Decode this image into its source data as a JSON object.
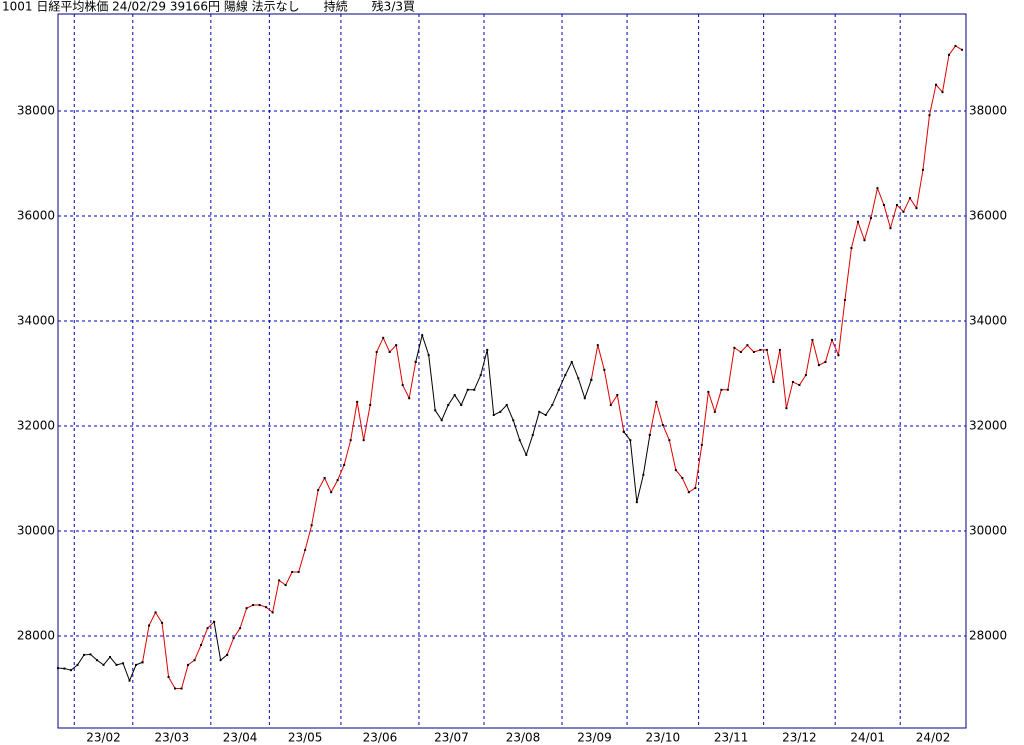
{
  "chart_data": {
    "type": "line",
    "title": "1001 日経平均株価 24/02/29 39166円 陽線 法示なし　　持続　　残3/3買",
    "categories": [
      null,
      null,
      null,
      "23/02",
      null,
      null,
      null,
      null,
      null,
      null,
      null,
      null,
      "23/03",
      null,
      null,
      null,
      null,
      null,
      null,
      null,
      null,
      null,
      null,
      null,
      "23/04",
      null,
      null,
      null,
      null,
      null,
      null,
      null,
      null,
      "23/05",
      null,
      null,
      null,
      null,
      null,
      null,
      null,
      null,
      null,
      null,
      "23/06",
      null,
      null,
      null,
      null,
      null,
      null,
      null,
      null,
      null,
      null,
      null,
      "23/07",
      null,
      null,
      null,
      null,
      null,
      null,
      null,
      null,
      null,
      "23/08",
      null,
      null,
      null,
      null,
      null,
      null,
      null,
      null,
      null,
      null,
      null,
      "23/09",
      null,
      null,
      null,
      null,
      null,
      null,
      null,
      null,
      null,
      "23/10",
      null,
      null,
      null,
      null,
      null,
      null,
      null,
      null,
      null,
      null,
      "23/11",
      null,
      null,
      null,
      null,
      null,
      null,
      null,
      null,
      null,
      "23/12",
      null,
      null,
      null,
      null,
      null,
      null,
      null,
      null,
      null,
      null,
      "24/01",
      null,
      null,
      null,
      null,
      null,
      null,
      null,
      null,
      null,
      "24/02",
      null,
      null,
      null,
      null,
      null,
      null,
      null,
      null,
      null
    ],
    "series": [
      {
        "color": "#000000",
        "values": [
          27390,
          27380,
          27350,
          27450,
          27640,
          27650,
          27540,
          27450,
          27600,
          27450,
          27480,
          27150,
          27450,
          27500,
          null,
          null,
          null,
          null,
          null,
          null,
          null,
          null,
          null,
          null,
          28270,
          27540,
          27640,
          null,
          null,
          null,
          null,
          null,
          null,
          null,
          null,
          null,
          null,
          null,
          null,
          null,
          null,
          null,
          null,
          null,
          null,
          null,
          null,
          null,
          null,
          null,
          null,
          null,
          null,
          null,
          null,
          33220,
          33730,
          33350,
          32300,
          32110,
          32400,
          32590,
          32400,
          32690,
          32690,
          32970,
          33450,
          32210,
          32270,
          32400,
          32110,
          31730,
          31450,
          31830,
          32270,
          32210,
          32400,
          32690,
          32970,
          33220,
          32910,
          32530,
          32880,
          null,
          null,
          null,
          null,
          31890,
          31730,
          30550,
          31070,
          31830,
          null,
          null,
          null,
          null,
          null,
          null,
          null,
          null,
          null,
          null,
          null,
          null,
          null,
          null,
          null,
          null,
          null,
          null,
          null,
          null,
          null,
          null,
          null,
          null,
          null,
          null,
          null,
          null,
          null,
          null,
          null,
          null,
          null,
          null,
          null,
          null,
          null,
          null,
          null,
          null,
          null,
          null,
          null,
          null,
          null,
          null,
          null,
          null
        ]
      },
      {
        "color": "#e00000",
        "values": [
          null,
          null,
          null,
          null,
          null,
          null,
          null,
          null,
          null,
          null,
          null,
          null,
          null,
          27500,
          28200,
          28450,
          28250,
          27220,
          27000,
          27000,
          27450,
          27540,
          27830,
          28150,
          28270,
          null,
          27640,
          27960,
          28150,
          28530,
          28590,
          28590,
          28550,
          28450,
          29060,
          28970,
          29220,
          29220,
          29640,
          30110,
          30780,
          31010,
          30740,
          30970,
          31260,
          31730,
          32460,
          31730,
          32400,
          33410,
          33680,
          33410,
          33540,
          32780,
          32530,
          33220,
          null,
          null,
          null,
          null,
          null,
          null,
          null,
          null,
          null,
          null,
          null,
          null,
          null,
          null,
          null,
          null,
          null,
          null,
          null,
          null,
          null,
          null,
          null,
          null,
          null,
          null,
          32880,
          33540,
          33070,
          32400,
          32590,
          31890,
          null,
          null,
          null,
          31830,
          32460,
          32020,
          31730,
          31160,
          31010,
          30740,
          30820,
          31640,
          32650,
          32270,
          32690,
          32690,
          33490,
          33410,
          33540,
          33410,
          33450,
          33450,
          32840,
          33450,
          32340,
          32840,
          32780,
          32970,
          33640,
          33160,
          33220,
          33640,
          33350,
          34400,
          35390,
          35890,
          35540,
          35960,
          36530,
          36210,
          35770,
          36210,
          36080,
          36340,
          36150,
          36880,
          37920,
          38500,
          38360,
          39070,
          39240,
          39166
        ]
      }
    ],
    "marker_color": "#000000",
    "axis_color": "#000080",
    "grid_color": "#0000c0",
    "ylim": [
      26248,
      39848
    ],
    "yticks": [
      28000,
      30000,
      32000,
      34000,
      36000,
      38000
    ],
    "grid": true
  }
}
